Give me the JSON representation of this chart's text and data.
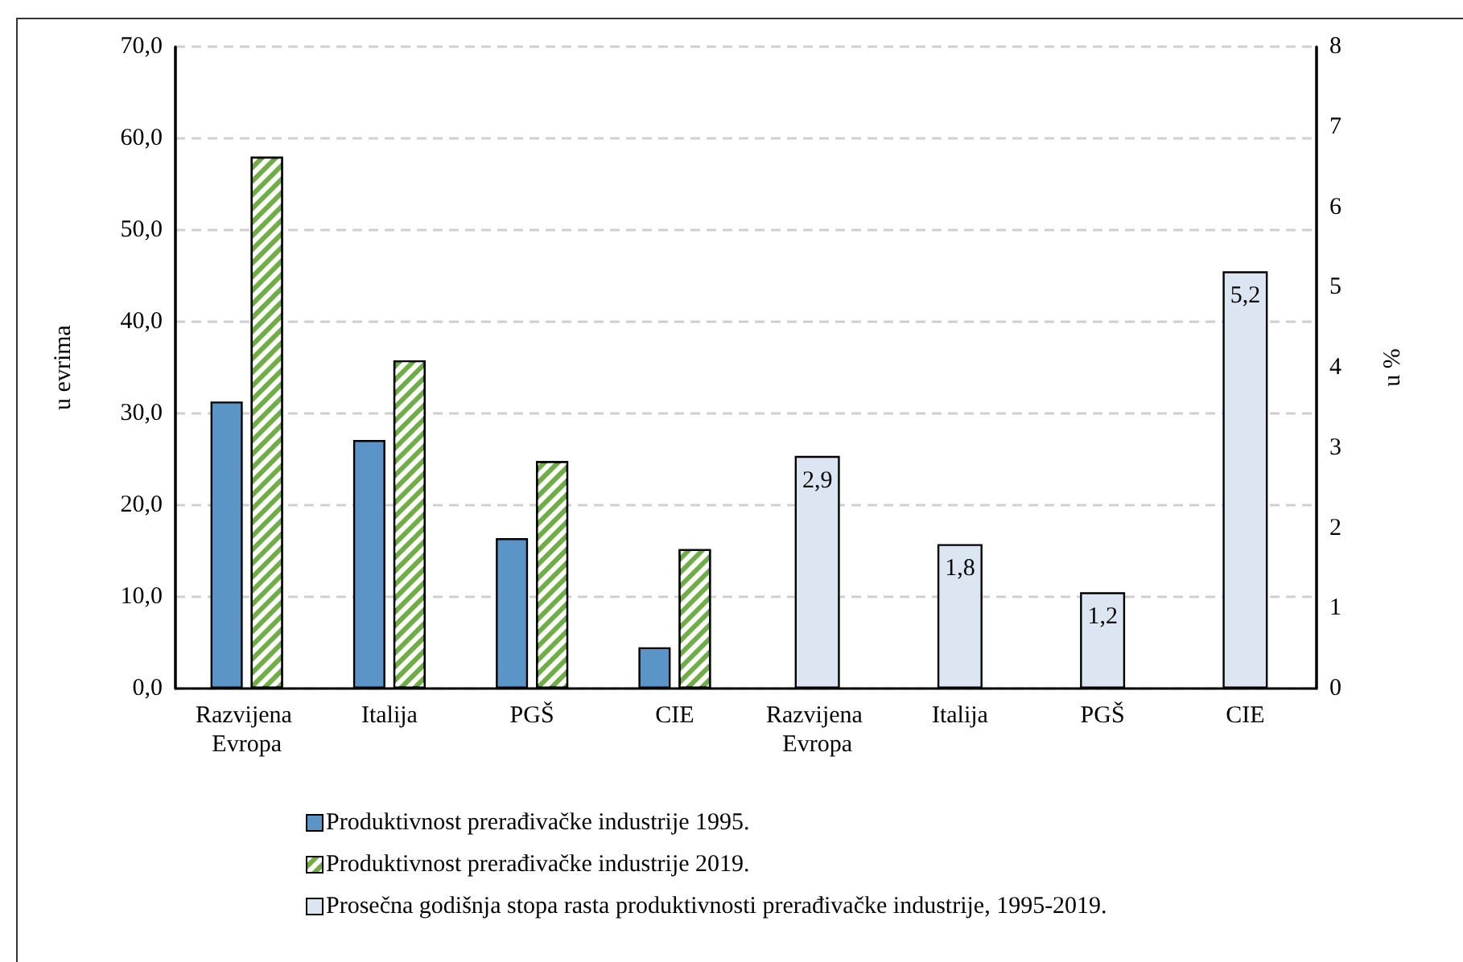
{
  "chart_data": {
    "type": "bar",
    "ylabel": "u evrima",
    "y2label": "u %",
    "categories": [
      "Razvijena Evropa",
      "Italija",
      "PGŠ",
      "CIE",
      "Razvijena Evropa",
      "Italija",
      "PGŠ",
      "CIE"
    ],
    "series": [
      {
        "name": "Produktivnost prerađivačke industrije 1995.",
        "color": "#5b94c7",
        "values": [
          31.3,
          27.1,
          16.4,
          4.5,
          null,
          null,
          null,
          null
        ]
      },
      {
        "name": "Produktivnost prerađivačke industrije 2019.",
        "color": "#70ad47",
        "values": [
          58.0,
          35.8,
          24.8,
          15.2,
          null,
          null,
          null,
          null
        ]
      },
      {
        "name": "Prosečna godišnja stopa rasta produktivnosti prerađivačke industrije, 1995-2019.",
        "color": "#dce6f2",
        "axis": "y2",
        "values": [
          null,
          null,
          null,
          null,
          2.9,
          1.8,
          1.2,
          5.2
        ],
        "value_labels": [
          null,
          null,
          null,
          null,
          "2,9",
          "1,8",
          "1,2",
          "5,2"
        ]
      }
    ],
    "ylim": [
      0,
      70
    ],
    "yticks": [
      {
        "value": 0,
        "label": "0,0"
      },
      {
        "value": 10,
        "label": "10,0"
      },
      {
        "value": 20,
        "label": "20,0"
      },
      {
        "value": 30,
        "label": "30,0"
      },
      {
        "value": 40,
        "label": "40,0"
      },
      {
        "value": 50,
        "label": "50,0"
      },
      {
        "value": 60,
        "label": "60,0"
      },
      {
        "value": 70,
        "label": "70,0"
      }
    ],
    "y2lim": [
      0,
      8
    ],
    "y2ticks": [
      0,
      1,
      2,
      3,
      4,
      5,
      6,
      7,
      8
    ],
    "grid": "y",
    "legend": "bottom"
  }
}
